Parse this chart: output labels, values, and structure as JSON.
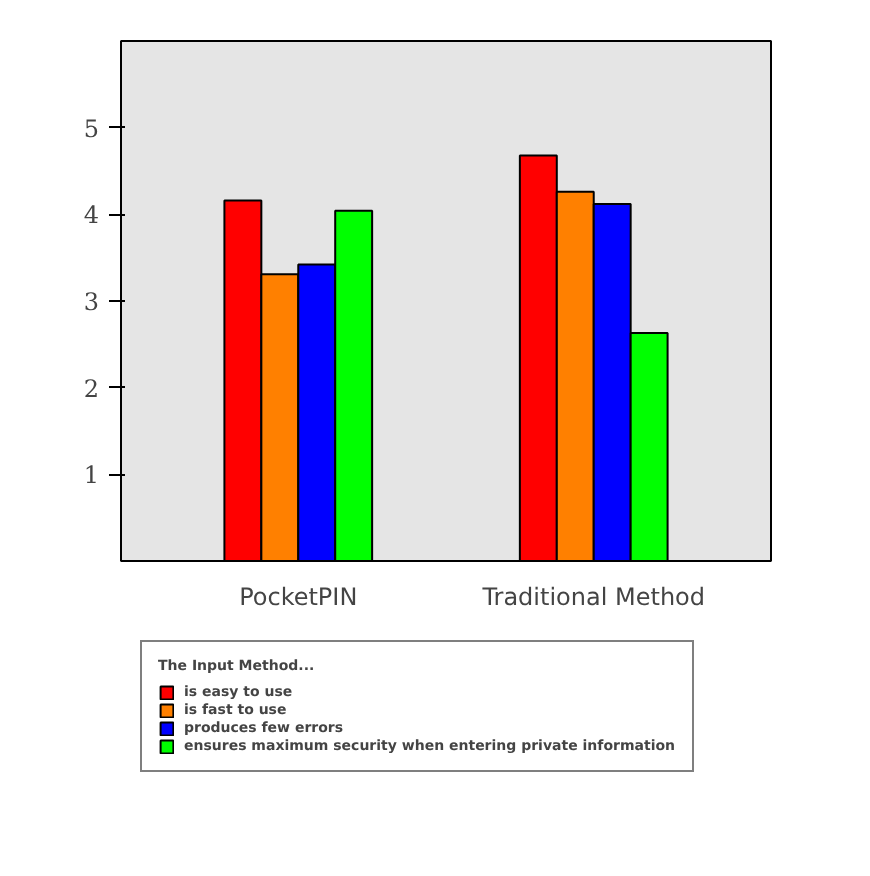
{
  "chart_data": {
    "type": "bar",
    "categories": [
      "PocketPIN",
      "Traditional Method"
    ],
    "series": [
      {
        "name": "is easy to use",
        "color": "#ff0000",
        "values": [
          4.16,
          4.68
        ]
      },
      {
        "name": "is fast to use",
        "color": "#ff8000",
        "values": [
          3.31,
          4.26
        ]
      },
      {
        "name": "produces few errors",
        "color": "#0000ff",
        "values": [
          3.42,
          4.12
        ]
      },
      {
        "name": "ensures maximum security when entering private information",
        "color": "#00ff00",
        "values": [
          4.04,
          2.63
        ]
      }
    ],
    "legend_title": "The Input Method...",
    "legend": "bottom",
    "ylim": [
      0,
      6
    ],
    "yticks": [
      1,
      2,
      3,
      4,
      5
    ],
    "grid": false
  }
}
